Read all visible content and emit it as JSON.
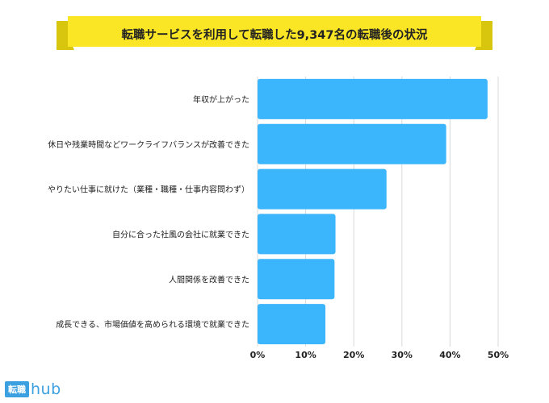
{
  "chart_data": {
    "type": "bar",
    "orientation": "horizontal",
    "title": "転職サービスを利用して転職した9,347名の転職後の状況",
    "categories": [
      "年収が上がった",
      "休日や残業時間などワークライフバランスが改善できた",
      "やりたい仕事に就けた（業種・職種・仕事内容問わず）",
      "自分に合った社風の会社に就業できた",
      "人間関係を改善できた",
      "成長できる、市場価値を高められる環境で就業できた"
    ],
    "values": [
      47.8,
      39.2,
      26.8,
      16.2,
      16.0,
      14.1
    ],
    "xlim": [
      0,
      50
    ],
    "xticks": [
      "0%",
      "10%",
      "20%",
      "30%",
      "40%",
      "50%"
    ],
    "grid": true,
    "bar_color": "#3bb5fb",
    "banner_color": "#fbe625"
  },
  "logo": {
    "box": "転職",
    "text": "hub"
  }
}
